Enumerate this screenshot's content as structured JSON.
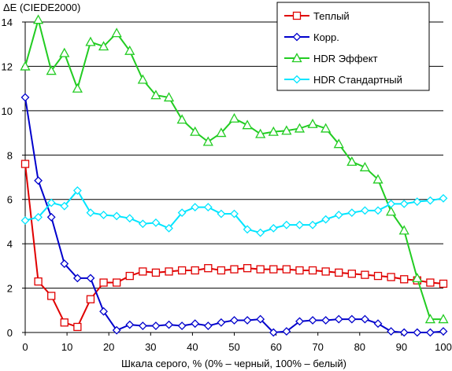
{
  "chart_data": {
    "type": "line",
    "title": "",
    "ylabel": "ΔE (CIEDE2000)",
    "xlabel": "Шкала серого, % (0% – черный, 100% – белый)",
    "xlim": [
      0,
      100
    ],
    "ylim": [
      0,
      14
    ],
    "xticks": [
      0,
      10,
      20,
      30,
      40,
      50,
      60,
      70,
      80,
      90,
      100
    ],
    "yticks": [
      0,
      2,
      4,
      6,
      8,
      10,
      12,
      14
    ],
    "grid": "horizontal",
    "legend_position": "top-right",
    "x": [
      0,
      3.125,
      6.25,
      9.375,
      12.5,
      15.625,
      18.75,
      21.875,
      25,
      28.125,
      31.25,
      34.375,
      37.5,
      40.625,
      43.75,
      46.875,
      50,
      53.125,
      56.25,
      59.375,
      62.5,
      65.625,
      68.75,
      71.875,
      75,
      78.125,
      81.25,
      84.375,
      87.5,
      90.625,
      93.75,
      96.875,
      100
    ],
    "series": [
      {
        "name": "Теплый",
        "color": "#e00000",
        "marker": "square",
        "values": [
          7.6,
          2.3,
          1.65,
          0.45,
          0.25,
          1.5,
          2.25,
          2.25,
          2.55,
          2.75,
          2.7,
          2.75,
          2.8,
          2.8,
          2.9,
          2.8,
          2.85,
          2.9,
          2.85,
          2.85,
          2.85,
          2.8,
          2.8,
          2.75,
          2.7,
          2.65,
          2.6,
          2.55,
          2.5,
          2.4,
          2.35,
          2.25,
          2.2
        ]
      },
      {
        "name": "Корр.",
        "color": "#0000cc",
        "marker": "diamond",
        "values": [
          10.6,
          6.85,
          5.2,
          3.1,
          2.45,
          2.45,
          0.95,
          0.1,
          0.35,
          0.3,
          0.3,
          0.35,
          0.3,
          0.4,
          0.3,
          0.45,
          0.55,
          0.55,
          0.6,
          0.0,
          0.05,
          0.5,
          0.55,
          0.55,
          0.6,
          0.6,
          0.6,
          0.4,
          0.05,
          0.0,
          0.0,
          0.0,
          0.05
        ]
      },
      {
        "name": "HDR Эффект",
        "color": "#22cc22",
        "marker": "triangle",
        "values": [
          12.0,
          14.1,
          11.8,
          12.6,
          11.0,
          13.1,
          12.9,
          13.5,
          12.7,
          11.4,
          10.7,
          10.6,
          9.6,
          9.05,
          8.6,
          9.0,
          9.65,
          9.35,
          8.95,
          9.05,
          9.1,
          9.2,
          9.4,
          9.2,
          8.5,
          7.7,
          7.45,
          6.9,
          5.45,
          4.6,
          2.45,
          0.6,
          0.6
        ]
      },
      {
        "name": "HDR Стандартный",
        "color": "#00e5ff",
        "marker": "diamond",
        "values": [
          5.05,
          5.2,
          5.85,
          5.7,
          6.4,
          5.4,
          5.3,
          5.25,
          5.15,
          4.9,
          4.95,
          4.7,
          5.4,
          5.65,
          5.65,
          5.35,
          5.35,
          4.65,
          4.5,
          4.7,
          4.85,
          4.85,
          4.85,
          5.1,
          5.3,
          5.4,
          5.5,
          5.5,
          5.8,
          5.8,
          5.9,
          5.95,
          6.05
        ]
      }
    ]
  }
}
